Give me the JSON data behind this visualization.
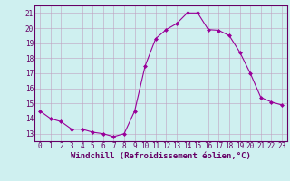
{
  "hours": [
    0,
    1,
    2,
    3,
    4,
    5,
    6,
    7,
    8,
    9,
    10,
    11,
    12,
    13,
    14,
    15,
    16,
    17,
    18,
    19,
    20,
    21,
    22,
    23
  ],
  "values": [
    14.5,
    14.0,
    13.8,
    13.3,
    13.3,
    13.1,
    13.0,
    12.8,
    13.0,
    14.5,
    17.5,
    19.3,
    19.9,
    20.3,
    21.0,
    21.0,
    19.9,
    19.85,
    19.5,
    18.4,
    17.0,
    15.4,
    15.1,
    14.9
  ],
  "line_color": "#990099",
  "marker": "D",
  "marker_size": 2,
  "bg_color": "#cff0f0",
  "grid_color": "#c0a0c0",
  "xlabel": "Windchill (Refroidissement éolien,°C)",
  "xlabel_color": "#660066",
  "ylim": [
    12.5,
    21.5
  ],
  "xlim": [
    -0.5,
    23.5
  ],
  "yticks": [
    13,
    14,
    15,
    16,
    17,
    18,
    19,
    20,
    21
  ],
  "xticks": [
    0,
    1,
    2,
    3,
    4,
    5,
    6,
    7,
    8,
    9,
    10,
    11,
    12,
    13,
    14,
    15,
    16,
    17,
    18,
    19,
    20,
    21,
    22,
    23
  ],
  "tick_color": "#660066",
  "axis_color": "#660066",
  "tick_fontsize": 5.5,
  "xlabel_fontsize": 6.5,
  "xlabel_fontweight": "bold"
}
